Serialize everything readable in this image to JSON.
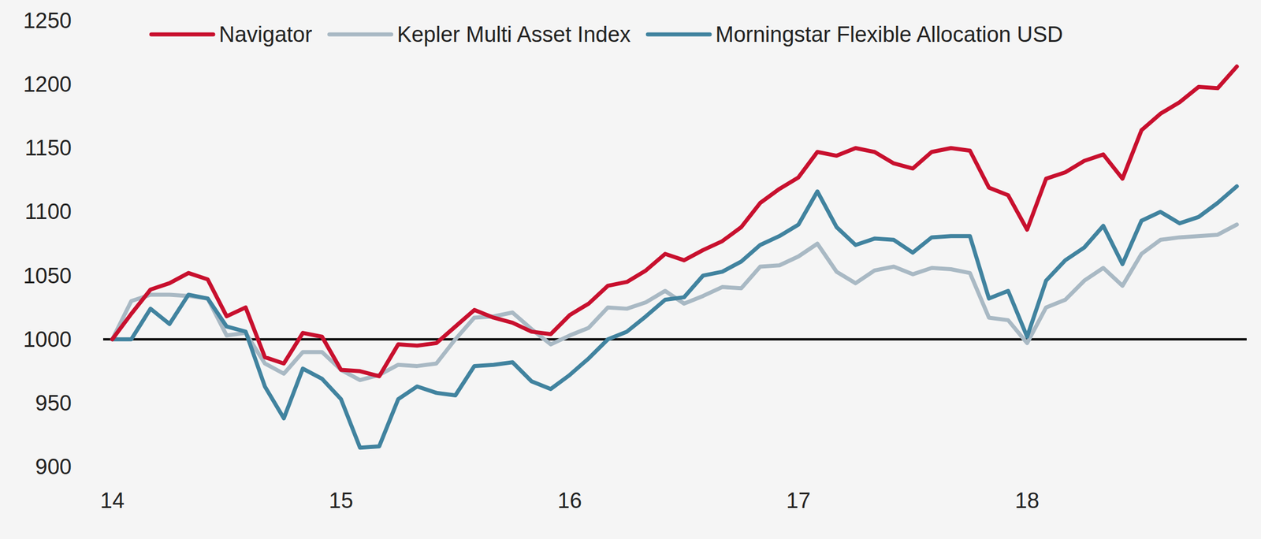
{
  "chart_data": {
    "type": "line",
    "x": [
      14,
      14.083,
      14.167,
      14.25,
      14.333,
      14.417,
      14.5,
      14.583,
      14.667,
      14.75,
      14.833,
      14.917,
      15,
      15.083,
      15.167,
      15.25,
      15.333,
      15.417,
      15.5,
      15.583,
      15.667,
      15.75,
      15.833,
      15.917,
      16,
      16.083,
      16.167,
      16.25,
      16.333,
      16.417,
      16.5,
      16.583,
      16.667,
      16.75,
      16.833,
      16.917,
      17,
      17.083,
      17.167,
      17.25,
      17.333,
      17.417,
      17.5,
      17.583,
      17.667,
      17.75,
      17.833,
      17.917,
      18,
      18.083,
      18.167,
      18.25,
      18.333,
      18.417,
      18.5,
      18.583,
      18.667,
      18.75,
      18.833,
      18.917
    ],
    "series": [
      {
        "name": "Navigator",
        "color": "#c8102e",
        "values": [
          1000,
          1020,
          1039,
          1044,
          1052,
          1047,
          1018,
          1025,
          986,
          981,
          1005,
          1002,
          976,
          975,
          971,
          996,
          995,
          997,
          1010,
          1023,
          1017,
          1013,
          1006,
          1004,
          1019,
          1028,
          1042,
          1045,
          1054,
          1067,
          1062,
          1070,
          1077,
          1088,
          1107,
          1118,
          1127,
          1147,
          1144,
          1150,
          1147,
          1138,
          1134,
          1147,
          1150,
          1148,
          1119,
          1113,
          1086,
          1126,
          1131,
          1140,
          1145,
          1126,
          1164,
          1177,
          1186,
          1198,
          1197,
          1214
        ]
      },
      {
        "name": "Kepler Multi Asset Index",
        "color": "#a9b9c4",
        "values": [
          1000,
          1030,
          1035,
          1035,
          1034,
          1032,
          1003,
          1005,
          981,
          973,
          990,
          990,
          976,
          968,
          972,
          980,
          979,
          981,
          1000,
          1017,
          1018,
          1021,
          1008,
          996,
          1003,
          1009,
          1025,
          1024,
          1029,
          1038,
          1028,
          1034,
          1041,
          1040,
          1057,
          1058,
          1065,
          1075,
          1053,
          1044,
          1054,
          1057,
          1051,
          1056,
          1055,
          1052,
          1017,
          1015,
          997,
          1025,
          1031,
          1046,
          1056,
          1042,
          1067,
          1078,
          1080,
          1081,
          1082,
          1090
        ]
      },
      {
        "name": "Morningstar Flexible Allocation USD",
        "color": "#41839f",
        "values": [
          1000,
          1000,
          1024,
          1012,
          1035,
          1032,
          1010,
          1006,
          963,
          938,
          977,
          969,
          953,
          915,
          916,
          953,
          963,
          958,
          956,
          979,
          980,
          982,
          967,
          961,
          972,
          985,
          1000,
          1006,
          1018,
          1031,
          1033,
          1050,
          1053,
          1061,
          1074,
          1081,
          1090,
          1116,
          1088,
          1074,
          1079,
          1078,
          1068,
          1080,
          1081,
          1081,
          1032,
          1038,
          1002,
          1046,
          1062,
          1072,
          1089,
          1059,
          1093,
          1100,
          1091,
          1096,
          1107,
          1120
        ]
      }
    ],
    "xlim": [
      13.96,
      18.96
    ],
    "xticks": [
      14,
      15,
      16,
      17,
      18
    ],
    "ylim": [
      900,
      1250
    ],
    "yticks": [
      900,
      950,
      1000,
      1050,
      1100,
      1150,
      1200,
      1250
    ],
    "baseline": 1000,
    "grid": false,
    "legend": "top"
  }
}
